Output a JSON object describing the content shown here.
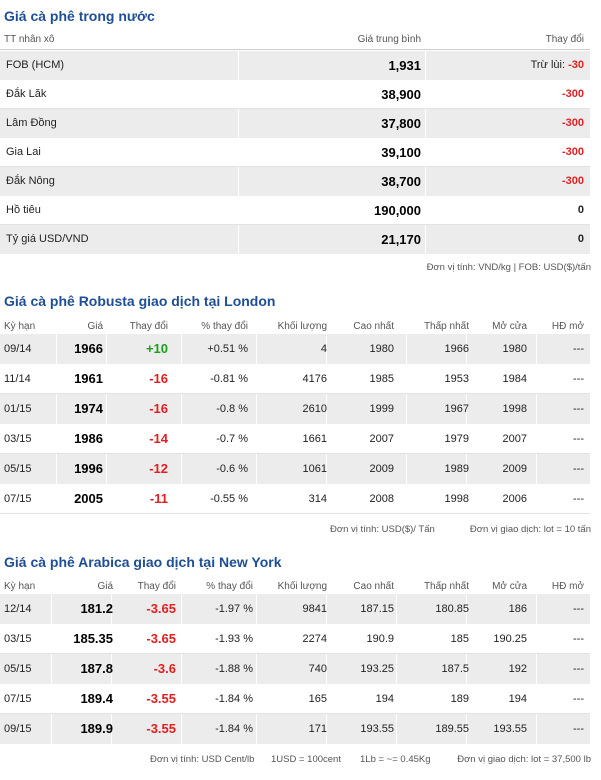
{
  "domestic": {
    "title": "Giá cà phê trong nước",
    "headers": [
      "TT nhân xô",
      "Giá trung bình",
      "Thay đổi"
    ],
    "rows": [
      {
        "name": "FOB (HCM)",
        "price": "1,931",
        "change_prefix": "Trừ lùi:",
        "change": "-30"
      },
      {
        "name": "Đắk Lăk",
        "price": "38,900",
        "change_prefix": "",
        "change": "-300"
      },
      {
        "name": "Lâm Đồng",
        "price": "37,800",
        "change_prefix": "",
        "change": "-300"
      },
      {
        "name": "Gia Lai",
        "price": "39,100",
        "change_prefix": "",
        "change": "-300"
      },
      {
        "name": "Đắk Nông",
        "price": "38,700",
        "change_prefix": "",
        "change": "-300"
      },
      {
        "name": "Hồ tiêu",
        "price": "190,000",
        "change_prefix": "",
        "change": "0"
      },
      {
        "name": "Tỷ giá USD/VND",
        "price": "21,170",
        "change_prefix": "",
        "change": "0"
      }
    ],
    "note": "Đơn vị tính: VND/kg | FOB: USD($)/tấn"
  },
  "london": {
    "title": "Giá cà phê Robusta giao dịch tại London",
    "headers": [
      "Kỳ hạn",
      "Giá",
      "Thay đổi",
      "% thay đổi",
      "Khối lượng",
      "Cao nhất",
      "Thấp nhất",
      "Mở cửa",
      "HĐ mở"
    ],
    "rows": [
      {
        "term": "09/14",
        "price": "1966",
        "change": "+10",
        "pct": "+0.51 %",
        "volume": "4",
        "high": "1980",
        "low": "1966",
        "open": "1980",
        "oi": "---",
        "up": true
      },
      {
        "term": "11/14",
        "price": "1961",
        "change": "-16",
        "pct": "-0.81 %",
        "volume": "4176",
        "high": "1985",
        "low": "1953",
        "open": "1984",
        "oi": "---",
        "up": false
      },
      {
        "term": "01/15",
        "price": "1974",
        "change": "-16",
        "pct": "-0.8 %",
        "volume": "2610",
        "high": "1999",
        "low": "1967",
        "open": "1998",
        "oi": "---",
        "up": false
      },
      {
        "term": "03/15",
        "price": "1986",
        "change": "-14",
        "pct": "-0.7 %",
        "volume": "1661",
        "high": "2007",
        "low": "1979",
        "open": "2007",
        "oi": "---",
        "up": false
      },
      {
        "term": "05/15",
        "price": "1996",
        "change": "-12",
        "pct": "-0.6 %",
        "volume": "1061",
        "high": "2009",
        "low": "1989",
        "open": "2009",
        "oi": "---",
        "up": false
      },
      {
        "term": "07/15",
        "price": "2005",
        "change": "-11",
        "pct": "-0.55 %",
        "volume": "314",
        "high": "2008",
        "low": "1998",
        "open": "2006",
        "oi": "---",
        "up": false
      }
    ],
    "note1": "Đơn vị tính: USD($)/ Tấn",
    "note2": "Đơn vị giao dịch: lot = 10 tấn"
  },
  "newyork": {
    "title": "Giá cà phê Arabica giao dịch tại New York",
    "headers": [
      "Kỳ hạn",
      "Giá",
      "Thay đổi",
      "% thay đổi",
      "Khối lượng",
      "Cao nhất",
      "Thấp nhất",
      "Mở cửa",
      "HĐ mở"
    ],
    "rows": [
      {
        "term": "12/14",
        "price": "181.2",
        "change": "-3.65",
        "pct": "-1.97 %",
        "volume": "9841",
        "high": "187.15",
        "low": "180.85",
        "open": "186",
        "oi": "---"
      },
      {
        "term": "03/15",
        "price": "185.35",
        "change": "-3.65",
        "pct": "-1.93 %",
        "volume": "2274",
        "high": "190.9",
        "low": "185",
        "open": "190.25",
        "oi": "---"
      },
      {
        "term": "05/15",
        "price": "187.8",
        "change": "-3.6",
        "pct": "-1.88 %",
        "volume": "740",
        "high": "193.25",
        "low": "187.5",
        "open": "192",
        "oi": "---"
      },
      {
        "term": "07/15",
        "price": "189.4",
        "change": "-3.55",
        "pct": "-1.84 %",
        "volume": "165",
        "high": "194",
        "low": "189",
        "open": "194",
        "oi": "---"
      },
      {
        "term": "09/15",
        "price": "189.9",
        "change": "-3.55",
        "pct": "-1.84 %",
        "volume": "171",
        "high": "193.55",
        "low": "189.55",
        "open": "193.55",
        "oi": "---"
      }
    ],
    "note1": "Đơn vị tính: USD Cent/lb",
    "note2": "1USD = 100cent",
    "note3": "1Lb = ~= 0.45Kg",
    "note4": "Đơn vị giao dịch: lot = 37,500 lb"
  }
}
